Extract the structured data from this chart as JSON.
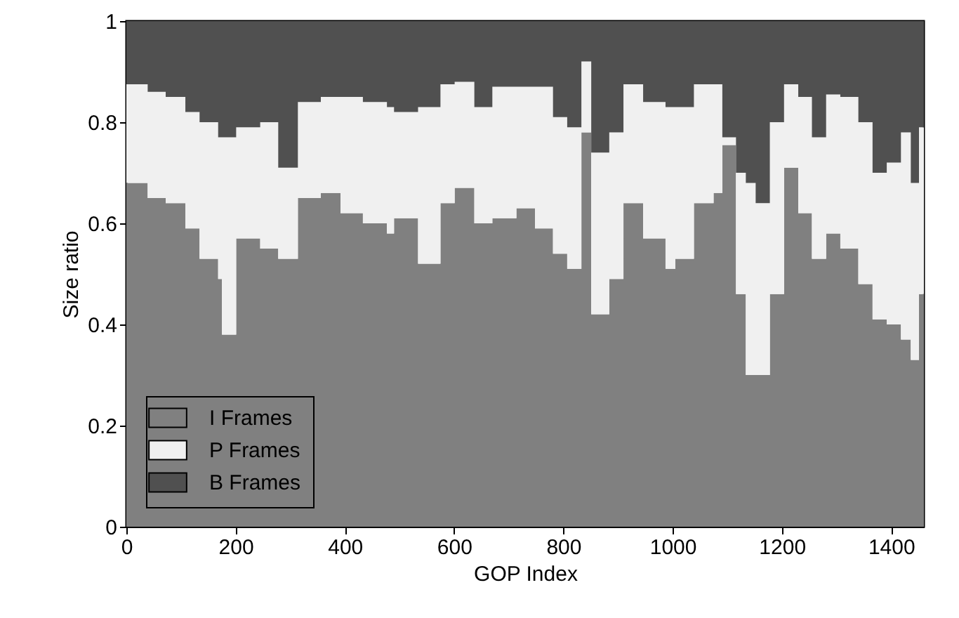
{
  "chart_data": {
    "type": "area",
    "stacked": true,
    "xlabel": "GOP Index",
    "ylabel": "Size ratio",
    "x": [
      0,
      39,
      72,
      108,
      134,
      168,
      175,
      201,
      245,
      278,
      314,
      356,
      392,
      433,
      477,
      490,
      534,
      575,
      601,
      637,
      670,
      714,
      748,
      781,
      807,
      833,
      851,
      884,
      910,
      946,
      987,
      1005,
      1039,
      1075,
      1091,
      1116,
      1134,
      1152,
      1178,
      1204,
      1230,
      1255,
      1281,
      1307,
      1340,
      1366,
      1392,
      1418,
      1436,
      1451,
      1460
    ],
    "series": [
      {
        "name": "I Frames",
        "color": "#808080",
        "values": [
          0.68,
          0.65,
          0.64,
          0.59,
          0.53,
          0.49,
          0.38,
          0.57,
          0.55,
          0.53,
          0.65,
          0.66,
          0.62,
          0.6,
          0.58,
          0.61,
          0.52,
          0.64,
          0.67,
          0.6,
          0.61,
          0.63,
          0.59,
          0.54,
          0.51,
          0.78,
          0.42,
          0.49,
          0.64,
          0.57,
          0.51,
          0.53,
          0.64,
          0.66,
          0.755,
          0.46,
          0.3,
          0.3,
          0.46,
          0.71,
          0.62,
          0.53,
          0.58,
          0.55,
          0.48,
          0.41,
          0.4,
          0.37,
          0.33,
          0.46,
          0.44
        ]
      },
      {
        "name": "P Frames",
        "color": "#f0f0f0",
        "values": [
          0.195,
          0.21,
          0.21,
          0.23,
          0.27,
          0.28,
          0.39,
          0.22,
          0.25,
          0.18,
          0.19,
          0.19,
          0.23,
          0.24,
          0.25,
          0.21,
          0.31,
          0.235,
          0.21,
          0.23,
          0.26,
          0.24,
          0.28,
          0.27,
          0.28,
          0.14,
          0.32,
          0.29,
          0.235,
          0.27,
          0.32,
          0.3,
          0.235,
          0.215,
          0.015,
          0.24,
          0.38,
          0.34,
          0.34,
          0.165,
          0.23,
          0.24,
          0.275,
          0.3,
          0.32,
          0.29,
          0.32,
          0.41,
          0.35,
          0.33,
          0.33
        ]
      },
      {
        "name": "B Frames",
        "color": "#505050",
        "values": [
          0.125,
          0.14,
          0.15,
          0.18,
          0.2,
          0.23,
          0.23,
          0.21,
          0.2,
          0.29,
          0.16,
          0.15,
          0.15,
          0.16,
          0.17,
          0.18,
          0.17,
          0.125,
          0.12,
          0.17,
          0.13,
          0.13,
          0.13,
          0.19,
          0.21,
          0.08,
          0.26,
          0.22,
          0.125,
          0.16,
          0.17,
          0.17,
          0.125,
          0.125,
          0.23,
          0.3,
          0.32,
          0.36,
          0.2,
          0.125,
          0.15,
          0.23,
          0.145,
          0.15,
          0.2,
          0.3,
          0.28,
          0.22,
          0.32,
          0.21,
          0.23
        ]
      }
    ],
    "xlim": [
      0,
      1460
    ],
    "xticks": [
      0,
      200,
      400,
      600,
      800,
      1000,
      1200,
      1400
    ],
    "ylim": [
      0,
      1
    ],
    "yticks": [
      0,
      0.2,
      0.4,
      0.6,
      0.8,
      1
    ],
    "legend": "bottom left",
    "grid": false
  }
}
